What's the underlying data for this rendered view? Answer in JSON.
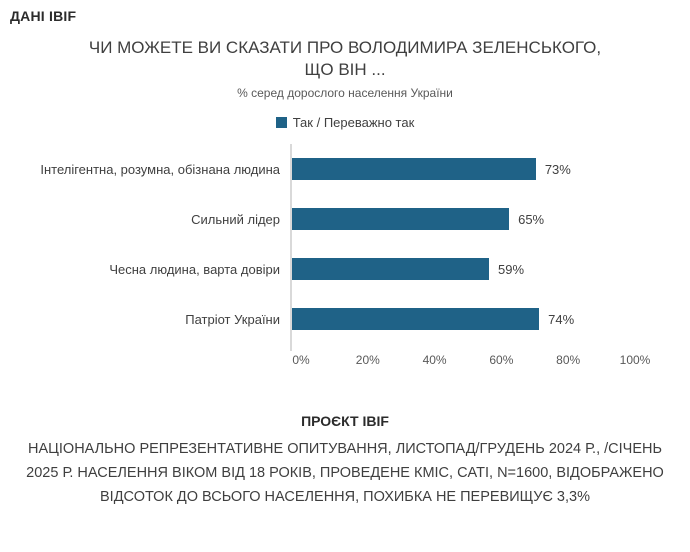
{
  "page": {
    "brand": "ДАНІ IBIF"
  },
  "chart_data": {
    "type": "bar",
    "orientation": "horizontal",
    "title": "ЧИ МОЖЕТЕ ВИ СКАЗАТИ ПРО ВОЛОДИМИРА ЗЕЛЕНСЬКОГО, ЩО ВІН ...",
    "title_lines": [
      "ЧИ МОЖЕТЕ ВИ СКАЗАТИ ПРО ВОЛОДИМИРА ЗЕЛЕНСЬКОГО,",
      "ЩО ВІН ..."
    ],
    "subtitle": "% серед дорослого населення України",
    "legend": {
      "label": "Так / Переважно так",
      "position": "top"
    },
    "categories": [
      "Інтелігентна, розумна, обізнана людина",
      "Сильний лідер",
      "Чесна людина, варта довіри",
      "Патріот України"
    ],
    "values": [
      73,
      65,
      59,
      74
    ],
    "value_labels": [
      "73%",
      "65%",
      "59%",
      "74%"
    ],
    "xlabel": "",
    "ylabel": "",
    "xlim": [
      0,
      100
    ],
    "x_ticks": [
      "0%",
      "20%",
      "40%",
      "60%",
      "80%",
      "100%"
    ],
    "grid": false,
    "bar_color": "#1f6287",
    "axis_color": "#d9d9d9"
  },
  "footer": {
    "heading": "ПРОЄКТ IBIF",
    "text": "НАЦІОНАЛЬНО РЕПРЕЗЕНТАТИВНЕ ОПИТУВАННЯ, ЛИСТОПАД/ГРУДЕНЬ 2024 Р., /СІЧЕНЬ 2025 Р. НАСЕЛЕННЯ ВІКОМ ВІД 18 РОКІВ, ПРОВЕДЕНЕ КМІС, CATI, N=1600, ВІДОБРАЖЕНО ВІДСОТОК ДО ВСЬОГО НАСЕЛЕННЯ, ПОХИБКА НЕ ПЕРЕВИЩУЄ 3,3%"
  }
}
